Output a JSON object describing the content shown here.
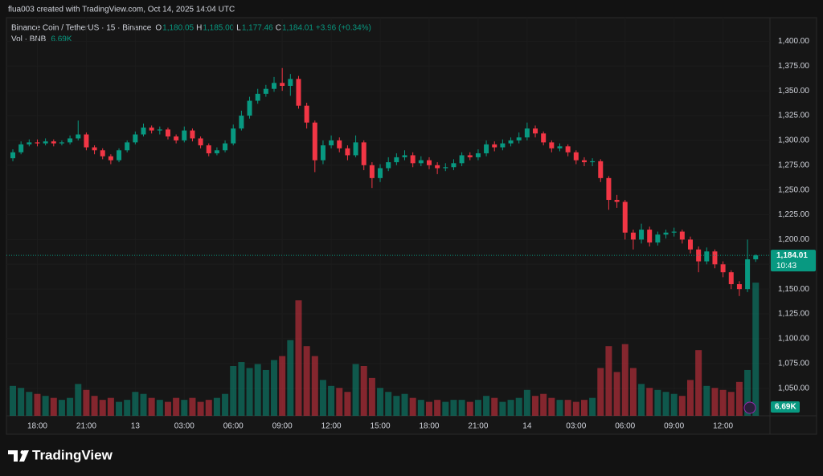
{
  "header": {
    "credit": "flua003 created with TradingView.com, Oct 14, 2025 14:04 UTC",
    "symbol": "Binance Coin / TetherUS · 15 · Binance",
    "o_label": "O",
    "o": "1,180.05",
    "h_label": "H",
    "h": "1,185.00",
    "l_label": "L",
    "l": "1,177.46",
    "c_label": "C",
    "c": "1,184.01",
    "change": "+3.96 (+0.34%)",
    "vol_label": "Vol · BNB",
    "vol": "6.69K"
  },
  "price_tag": {
    "price": "1,184.01",
    "countdown": "10:43"
  },
  "volume_tag": "6.69K",
  "logo": "TradingView",
  "chart_data": {
    "type": "candlestick",
    "categories": [
      null,
      null,
      null,
      "18:00",
      null,
      null,
      null,
      null,
      null,
      "21:00",
      null,
      null,
      null,
      null,
      null,
      "13",
      null,
      null,
      null,
      null,
      null,
      "03:00",
      null,
      null,
      null,
      null,
      null,
      "06:00",
      null,
      null,
      null,
      null,
      null,
      "09:00",
      null,
      null,
      null,
      null,
      null,
      "12:00",
      null,
      null,
      null,
      null,
      null,
      "15:00",
      null,
      null,
      null,
      null,
      null,
      "18:00",
      null,
      null,
      null,
      null,
      null,
      "21:00",
      null,
      null,
      null,
      null,
      null,
      "14",
      null,
      null,
      null,
      null,
      null,
      "03:00",
      null,
      null,
      null,
      null,
      null,
      "06:00",
      null,
      null,
      null,
      null,
      null,
      "09:00",
      null,
      null,
      null,
      null,
      null,
      "12:00",
      null,
      null,
      null,
      null
    ],
    "open": [
      1282,
      1288,
      1296,
      1298,
      1297,
      1299,
      1297,
      1298,
      1302,
      1306,
      1293,
      1290,
      1284,
      1280,
      1290,
      1298,
      1306,
      1313,
      1310,
      1311,
      1304,
      1300,
      1310,
      1302,
      1295,
      1287,
      1290,
      1297,
      1312,
      1325,
      1340,
      1347,
      1352,
      1358,
      1355,
      1362,
      1335,
      1318,
      1280,
      1295,
      1300,
      1292,
      1285,
      1298,
      1275,
      1262,
      1272,
      1278,
      1283,
      1285,
      1277,
      1280,
      1275,
      1272,
      1273,
      1277,
      1285,
      1283,
      1287,
      1296,
      1293,
      1297,
      1300,
      1303,
      1312,
      1307,
      1298,
      1292,
      1294,
      1288,
      1280,
      1278,
      1279,
      1262,
      1240,
      1238,
      1207,
      1200,
      1210,
      1197,
      1205,
      1207,
      1208,
      1200,
      1190,
      1178,
      1188,
      1175,
      1167,
      1155,
      1150,
      1180.05
    ],
    "high": [
      1291,
      1299,
      1301,
      1301,
      1302,
      1301,
      1300,
      1305,
      1320,
      1308,
      1295,
      1292,
      1286,
      1292,
      1300,
      1309,
      1317,
      1315,
      1314,
      1313,
      1306,
      1314,
      1312,
      1304,
      1297,
      1293,
      1300,
      1316,
      1330,
      1344,
      1352,
      1356,
      1364,
      1373,
      1367,
      1365,
      1338,
      1320,
      1300,
      1305,
      1303,
      1295,
      1305,
      1300,
      1278,
      1276,
      1283,
      1287,
      1290,
      1288,
      1284,
      1283,
      1278,
      1277,
      1281,
      1288,
      1288,
      1291,
      1300,
      1299,
      1301,
      1303,
      1308,
      1318,
      1315,
      1309,
      1300,
      1297,
      1296,
      1290,
      1283,
      1282,
      1281,
      1264,
      1245,
      1240,
      1210,
      1216,
      1213,
      1208,
      1210,
      1212,
      1210,
      1203,
      1193,
      1192,
      1190,
      1178,
      1169,
      1158,
      1200,
      1185
    ],
    "low": [
      1279,
      1286,
      1294,
      1294,
      1295,
      1294,
      1295,
      1296,
      1300,
      1290,
      1286,
      1281,
      1276,
      1278,
      1288,
      1296,
      1304,
      1307,
      1306,
      1301,
      1297,
      1298,
      1299,
      1292,
      1284,
      1285,
      1288,
      1295,
      1310,
      1322,
      1337,
      1344,
      1349,
      1350,
      1345,
      1332,
      1312,
      1268,
      1276,
      1292,
      1288,
      1280,
      1283,
      1270,
      1252,
      1258,
      1269,
      1275,
      1280,
      1273,
      1274,
      1271,
      1266,
      1269,
      1270,
      1274,
      1280,
      1280,
      1284,
      1289,
      1290,
      1294,
      1297,
      1300,
      1303,
      1295,
      1288,
      1289,
      1284,
      1276,
      1274,
      1274,
      1258,
      1230,
      1232,
      1200,
      1190,
      1196,
      1193,
      1194,
      1201,
      1203,
      1196,
      1186,
      1167,
      1175,
      1171,
      1162,
      1150,
      1143,
      1147,
      1177.46
    ],
    "close": [
      1288,
      1296,
      1298,
      1297,
      1299,
      1297,
      1298,
      1302,
      1306,
      1293,
      1290,
      1284,
      1280,
      1290,
      1298,
      1306,
      1313,
      1310,
      1311,
      1304,
      1300,
      1310,
      1302,
      1295,
      1287,
      1290,
      1297,
      1312,
      1325,
      1340,
      1347,
      1352,
      1358,
      1355,
      1362,
      1335,
      1318,
      1280,
      1295,
      1300,
      1292,
      1285,
      1298,
      1275,
      1262,
      1272,
      1278,
      1283,
      1285,
      1277,
      1280,
      1275,
      1272,
      1273,
      1277,
      1285,
      1283,
      1287,
      1296,
      1293,
      1297,
      1300,
      1303,
      1312,
      1307,
      1298,
      1292,
      1294,
      1288,
      1280,
      1278,
      1279,
      1262,
      1240,
      1238,
      1207,
      1200,
      1210,
      1197,
      1205,
      1207,
      1208,
      1200,
      1190,
      1178,
      1188,
      1175,
      1167,
      1155,
      1150,
      1180.05,
      1184.01
    ],
    "volume": [
      1500,
      1400,
      1200,
      1100,
      1000,
      900,
      800,
      900,
      1600,
      1300,
      1000,
      800,
      900,
      700,
      800,
      1200,
      1100,
      900,
      800,
      700,
      900,
      800,
      900,
      700,
      800,
      900,
      1100,
      2500,
      2700,
      2400,
      2600,
      2300,
      2800,
      3000,
      3800,
      5800,
      3500,
      3000,
      1800,
      1500,
      1400,
      1200,
      2600,
      2500,
      1900,
      1400,
      1200,
      1000,
      1100,
      900,
      800,
      700,
      800,
      700,
      800,
      800,
      700,
      800,
      1000,
      900,
      700,
      800,
      900,
      1300,
      1000,
      1100,
      900,
      800,
      800,
      700,
      800,
      900,
      2400,
      3500,
      2200,
      3600,
      2400,
      1600,
      1400,
      1300,
      1200,
      1100,
      1000,
      1800,
      3300,
      1500,
      1400,
      1300,
      1200,
      1700,
      2300,
      6690
    ],
    "up_color": "#089981",
    "down_color": "#f23645",
    "ylim": [
      1022.22,
      1423.81
    ],
    "yticks": [
      {
        "value": 1050,
        "label": "1,050.00"
      },
      {
        "value": 1075,
        "label": "1,075.00"
      },
      {
        "value": 1100,
        "label": "1,100.00"
      },
      {
        "value": 1125,
        "label": "1,125.00"
      },
      {
        "value": 1150,
        "label": "1,150.00"
      },
      {
        "value": 1175,
        "label": "1,175.00"
      },
      {
        "value": 1200,
        "label": "1,200.00"
      },
      {
        "value": 1225,
        "label": "1,225.00"
      },
      {
        "value": 1250,
        "label": "1,250.00"
      },
      {
        "value": 1275,
        "label": "1,275.00"
      },
      {
        "value": 1300,
        "label": "1,300.00"
      },
      {
        "value": 1325,
        "label": "1,325.00"
      },
      {
        "value": 1350,
        "label": "1,350.00"
      },
      {
        "value": 1375,
        "label": "1,375.00"
      },
      {
        "value": 1400,
        "label": "1,400.00"
      }
    ],
    "vol_ylim": [
      0,
      20000
    ],
    "last_price": 1184.01,
    "grid": true
  }
}
